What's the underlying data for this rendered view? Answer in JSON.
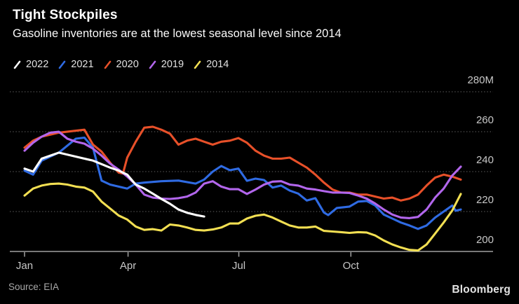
{
  "header": {
    "title": "Tight Stockpiles",
    "subtitle": "Gasoline inventories are at the lowest seasonal level since 2014"
  },
  "legend": [
    {
      "label": "2022",
      "color": "#FFFFFF"
    },
    {
      "label": "2021",
      "color": "#2F6BE3"
    },
    {
      "label": "2020",
      "color": "#E75029"
    },
    {
      "label": "2019",
      "color": "#B266EC"
    },
    {
      "label": "2014",
      "color": "#F2DF52"
    }
  ],
  "footer": {
    "source": "Source: EIA",
    "brand": "Bloomberg"
  },
  "colors": {
    "background": "#000000",
    "grid": "#515151",
    "axis_line": "#A0A0A0",
    "tick_label": "#C7C7C7"
  },
  "chart_data": {
    "type": "line",
    "title": "Tight Stockpiles",
    "subtitle": "Gasoline inventories are at the lowest seasonal level since 2014",
    "y_unit": "million barrels",
    "x_unit": "week of year",
    "ylim": [
      196,
      283
    ],
    "grid": "horizontal-dotted",
    "legend_position": "top-left",
    "y_ticks": [
      {
        "label": "280M",
        "value": 280
      },
      {
        "label": "260",
        "value": 260
      },
      {
        "label": "240",
        "value": 240
      },
      {
        "label": "220",
        "value": 220
      },
      {
        "label": "200",
        "value": 200
      }
    ],
    "x_ticks": [
      {
        "label": "Jan",
        "week": 1
      },
      {
        "label": "Apr",
        "week": 13.1
      },
      {
        "label": "Jul",
        "week": 26.05
      },
      {
        "label": "Oct",
        "week": 39.15
      }
    ],
    "draw_order": [
      "2021",
      "2014",
      "2020",
      "2019",
      "2022"
    ],
    "series": [
      {
        "name": "2022",
        "color": "#FFFFFF",
        "points": [
          [
            1,
            241.5
          ],
          [
            2,
            240
          ],
          [
            3,
            246.5
          ],
          [
            5,
            249.5
          ],
          [
            7,
            247.5
          ],
          [
            9,
            245.5
          ],
          [
            11,
            242
          ],
          [
            12,
            240.5
          ],
          [
            13,
            238.5
          ],
          [
            14,
            233.5
          ],
          [
            15,
            231.5
          ],
          [
            16,
            229
          ],
          [
            17,
            226.3
          ],
          [
            18,
            223.9
          ],
          [
            19,
            221
          ],
          [
            20,
            219.4
          ],
          [
            21,
            218.3
          ],
          [
            22,
            217.5
          ]
        ]
      },
      {
        "name": "2021",
        "color": "#2F6BE3",
        "points": [
          [
            1,
            240.5
          ],
          [
            2,
            238.5
          ],
          [
            3,
            245.5
          ],
          [
            5,
            249.5
          ],
          [
            7,
            256.5
          ],
          [
            8,
            257
          ],
          [
            9,
            252
          ],
          [
            10,
            235.5
          ],
          [
            11,
            233.5
          ],
          [
            13,
            231.5
          ],
          [
            14,
            234
          ],
          [
            15,
            234.5
          ],
          [
            17,
            235.2
          ],
          [
            19,
            235.5
          ],
          [
            21,
            234
          ],
          [
            22,
            236
          ],
          [
            23,
            240
          ],
          [
            24,
            242.8
          ],
          [
            25,
            240.7
          ],
          [
            26,
            241.5
          ],
          [
            27,
            235.4
          ],
          [
            28,
            236.5
          ],
          [
            29,
            235.8
          ],
          [
            30,
            232
          ],
          [
            31,
            233
          ],
          [
            32,
            230.5
          ],
          [
            33,
            229
          ],
          [
            34,
            225.5
          ],
          [
            35,
            226.7
          ],
          [
            36,
            219.5
          ],
          [
            36.5,
            218.2
          ],
          [
            37.5,
            221.8
          ],
          [
            39,
            222.5
          ],
          [
            40,
            225
          ],
          [
            41,
            225.3
          ],
          [
            42,
            223
          ],
          [
            43,
            218.5
          ],
          [
            44,
            216.5
          ],
          [
            45,
            214.5
          ],
          [
            46,
            213
          ],
          [
            47,
            211.3
          ],
          [
            48,
            213
          ],
          [
            49,
            217
          ],
          [
            50,
            220
          ],
          [
            51,
            223
          ],
          [
            51.4,
            220.4
          ],
          [
            52,
            221
          ]
        ]
      },
      {
        "name": "2020",
        "color": "#E75029",
        "points": [
          [
            1,
            252
          ],
          [
            2,
            255.5
          ],
          [
            3,
            257.5
          ],
          [
            5,
            259.5
          ],
          [
            7,
            260.5
          ],
          [
            8,
            261
          ],
          [
            9,
            253.5
          ],
          [
            10,
            250
          ],
          [
            11,
            244.5
          ],
          [
            12,
            239.5
          ],
          [
            12.5,
            239
          ],
          [
            13,
            247
          ],
          [
            14,
            255
          ],
          [
            15,
            262
          ],
          [
            16,
            262.5
          ],
          [
            17,
            261
          ],
          [
            18,
            259
          ],
          [
            19,
            253.5
          ],
          [
            20,
            255.5
          ],
          [
            21,
            256.5
          ],
          [
            22,
            255
          ],
          [
            23,
            253.5
          ],
          [
            24,
            255
          ],
          [
            25,
            255.5
          ],
          [
            26,
            256.8
          ],
          [
            27,
            254.5
          ],
          [
            28,
            250.5
          ],
          [
            29,
            248
          ],
          [
            30,
            246.5
          ],
          [
            31,
            246.5
          ],
          [
            32,
            247
          ],
          [
            33,
            244.5
          ],
          [
            34,
            242
          ],
          [
            35,
            238.5
          ],
          [
            36,
            234.5
          ],
          [
            37,
            231
          ],
          [
            38,
            229.5
          ],
          [
            39,
            229.5
          ],
          [
            40,
            228.5
          ],
          [
            41,
            228.5
          ],
          [
            42,
            227.5
          ],
          [
            43,
            226.5
          ],
          [
            44,
            227
          ],
          [
            45,
            225.5
          ],
          [
            46,
            226.5
          ],
          [
            47,
            228.5
          ],
          [
            48,
            233
          ],
          [
            49,
            237
          ],
          [
            50,
            238.5
          ],
          [
            51,
            237.5
          ],
          [
            52,
            236
          ]
        ]
      },
      {
        "name": "2019",
        "color": "#B266EC",
        "points": [
          [
            1,
            250.5
          ],
          [
            2,
            254.5
          ],
          [
            3,
            257.5
          ],
          [
            4,
            259.5
          ],
          [
            5,
            260
          ],
          [
            6,
            256.5
          ],
          [
            7,
            255
          ],
          [
            8,
            254
          ],
          [
            9,
            251.5
          ],
          [
            10,
            248
          ],
          [
            11,
            244
          ],
          [
            12,
            241
          ],
          [
            13,
            237.5
          ],
          [
            14,
            233.5
          ],
          [
            15,
            228.5
          ],
          [
            16,
            227
          ],
          [
            17,
            226.5
          ],
          [
            18,
            226.3
          ],
          [
            19,
            226.7
          ],
          [
            20,
            227.5
          ],
          [
            21,
            229.5
          ],
          [
            22,
            234
          ],
          [
            23,
            235.2
          ],
          [
            24,
            232.5
          ],
          [
            25,
            231.2
          ],
          [
            26,
            231.2
          ],
          [
            27,
            228.8
          ],
          [
            28,
            231
          ],
          [
            29,
            233.5
          ],
          [
            30,
            235
          ],
          [
            31,
            235.2
          ],
          [
            32,
            233.5
          ],
          [
            33,
            233
          ],
          [
            34,
            231.5
          ],
          [
            35,
            231
          ],
          [
            36,
            230.2
          ],
          [
            37,
            229.5
          ],
          [
            38,
            229.5
          ],
          [
            39,
            229.3
          ],
          [
            40,
            228
          ],
          [
            41,
            226.5
          ],
          [
            42,
            224
          ],
          [
            43,
            221
          ],
          [
            44,
            218.5
          ],
          [
            45,
            217
          ],
          [
            46,
            216.7
          ],
          [
            47,
            217.3
          ],
          [
            48,
            221
          ],
          [
            49,
            227
          ],
          [
            50,
            231.5
          ],
          [
            51,
            238
          ],
          [
            52,
            242.5
          ]
        ]
      },
      {
        "name": "2014",
        "color": "#F2DF52",
        "points": [
          [
            1,
            228
          ],
          [
            2,
            231.5
          ],
          [
            3,
            233
          ],
          [
            4,
            233.8
          ],
          [
            5,
            234
          ],
          [
            6,
            233.5
          ],
          [
            7,
            232.5
          ],
          [
            8,
            232
          ],
          [
            9,
            230
          ],
          [
            10,
            225
          ],
          [
            11,
            221.5
          ],
          [
            12,
            218
          ],
          [
            13,
            216
          ],
          [
            14,
            212.5
          ],
          [
            15,
            210.8
          ],
          [
            16,
            211.2
          ],
          [
            17,
            210.5
          ],
          [
            18,
            213.5
          ],
          [
            19,
            213
          ],
          [
            20,
            212
          ],
          [
            21,
            210.8
          ],
          [
            22,
            210.5
          ],
          [
            23,
            211
          ],
          [
            24,
            212
          ],
          [
            25,
            214
          ],
          [
            26,
            214
          ],
          [
            27,
            216.5
          ],
          [
            28,
            217.9
          ],
          [
            29,
            218.5
          ],
          [
            30,
            217
          ],
          [
            31,
            215
          ],
          [
            32,
            213
          ],
          [
            33,
            212
          ],
          [
            34,
            212
          ],
          [
            35,
            212.5
          ],
          [
            36,
            210.3
          ],
          [
            37,
            210
          ],
          [
            38,
            209.7
          ],
          [
            39,
            209.3
          ],
          [
            40,
            209.7
          ],
          [
            41,
            209.5
          ],
          [
            42,
            208
          ],
          [
            43,
            205.5
          ],
          [
            44,
            203.5
          ],
          [
            45,
            202
          ],
          [
            46,
            200.8
          ],
          [
            47,
            200.5
          ],
          [
            48,
            203.5
          ],
          [
            49,
            209
          ],
          [
            50,
            214.5
          ],
          [
            51,
            220.5
          ],
          [
            52,
            228.8
          ]
        ]
      }
    ]
  }
}
